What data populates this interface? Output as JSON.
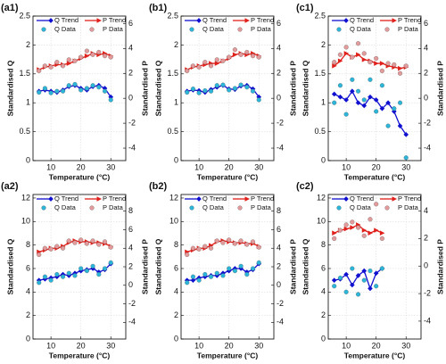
{
  "chart_data": [
    {
      "type": "line",
      "title": "(a1)",
      "x_label": "Temperature (°C)",
      "y_label": "Standardised Q",
      "y2_label": "Standardised P",
      "xlim": [
        4,
        35
      ],
      "xticks": [
        10,
        20,
        30
      ],
      "ylim": [
        0,
        2.5
      ],
      "yticks": [
        0,
        0.5,
        1,
        1.5,
        2,
        2.5
      ],
      "y2lim": [
        -5,
        6.6
      ],
      "y2ticks": [
        -4,
        -2,
        0,
        2,
        4,
        6
      ],
      "grid": true,
      "series": [
        {
          "name": "Q Trend",
          "kind": "line",
          "color": "#1010d0",
          "x": [
            6,
            8,
            10,
            12,
            14,
            16,
            18,
            20,
            22,
            24,
            26,
            28,
            30
          ],
          "values": [
            1.2,
            1.22,
            1.2,
            1.18,
            1.22,
            1.28,
            1.3,
            1.25,
            1.22,
            1.28,
            1.3,
            1.25,
            1.1
          ]
        },
        {
          "name": "P Trend",
          "kind": "line",
          "axis": "y2",
          "color": "#e0201b",
          "x": [
            6,
            8,
            10,
            12,
            14,
            16,
            18,
            20,
            22,
            24,
            26,
            28,
            30
          ],
          "values": [
            2.3,
            2.5,
            2.6,
            2.7,
            2.7,
            2.8,
            3.0,
            3.2,
            3.4,
            3.6,
            3.5,
            3.6,
            3.4
          ]
        },
        {
          "name": "Q Data",
          "kind": "scatter",
          "color": "#2bb5d8",
          "x": [
            6,
            8,
            10,
            12,
            14,
            16,
            18,
            20,
            22,
            24,
            26,
            28,
            30
          ],
          "values": [
            1.18,
            1.25,
            1.17,
            1.2,
            1.2,
            1.3,
            1.32,
            1.22,
            1.25,
            1.3,
            1.27,
            1.2,
            1.05
          ]
        },
        {
          "name": "P Data",
          "kind": "scatter",
          "axis": "y2",
          "color": "#e39a9a",
          "x": [
            6,
            8,
            10,
            12,
            14,
            16,
            18,
            20,
            22,
            24,
            26,
            28,
            30
          ],
          "values": [
            2.2,
            2.6,
            2.5,
            2.9,
            2.6,
            3.1,
            3.0,
            3.3,
            3.8,
            3.5,
            3.7,
            3.4,
            3.3
          ]
        }
      ]
    },
    {
      "type": "line",
      "title": "(b1)",
      "x_label": "Temperature (°C)",
      "y_label": "Standardised Q",
      "y2_label": "Standardised P",
      "xlim": [
        4,
        35
      ],
      "xticks": [
        10,
        20,
        30
      ],
      "ylim": [
        0,
        2.5
      ],
      "yticks": [
        0,
        0.5,
        1,
        1.5,
        2,
        2.5
      ],
      "y2lim": [
        -5,
        6.6
      ],
      "y2ticks": [
        -4,
        -2,
        0,
        2,
        4,
        6
      ],
      "grid": true,
      "series": [
        {
          "name": "Q Trend",
          "kind": "line",
          "color": "#1010d0",
          "x": [
            6,
            8,
            10,
            12,
            14,
            16,
            18,
            20,
            22,
            24,
            26,
            28,
            30
          ],
          "values": [
            1.2,
            1.22,
            1.21,
            1.18,
            1.23,
            1.27,
            1.3,
            1.24,
            1.23,
            1.29,
            1.3,
            1.24,
            1.1
          ]
        },
        {
          "name": "P Trend",
          "kind": "line",
          "axis": "y2",
          "color": "#e0201b",
          "x": [
            6,
            8,
            10,
            12,
            14,
            16,
            18,
            20,
            22,
            24,
            26,
            28,
            30
          ],
          "values": [
            2.3,
            2.5,
            2.6,
            2.7,
            2.8,
            2.8,
            3.0,
            3.2,
            3.5,
            3.6,
            3.5,
            3.6,
            3.4
          ]
        },
        {
          "name": "Q Data",
          "kind": "scatter",
          "color": "#2bb5d8",
          "x": [
            6,
            8,
            10,
            12,
            14,
            16,
            18,
            20,
            22,
            24,
            26,
            28,
            30
          ],
          "values": [
            1.18,
            1.24,
            1.17,
            1.21,
            1.2,
            1.3,
            1.31,
            1.22,
            1.25,
            1.31,
            1.27,
            1.2,
            1.05
          ]
        },
        {
          "name": "P Data",
          "kind": "scatter",
          "axis": "y2",
          "color": "#e39a9a",
          "x": [
            6,
            8,
            10,
            12,
            14,
            16,
            18,
            20,
            22,
            24,
            26,
            28,
            30
          ],
          "values": [
            2.2,
            2.6,
            2.5,
            2.9,
            2.6,
            3.1,
            3.0,
            3.3,
            3.9,
            3.5,
            3.7,
            3.4,
            3.3
          ]
        }
      ]
    },
    {
      "type": "line",
      "title": "(c1)",
      "x_label": "Temperature (°C)",
      "y_label": "Standardised Q",
      "y2_label": "Standardised P",
      "xlim": [
        4,
        35
      ],
      "xticks": [
        10,
        20,
        30
      ],
      "ylim": [
        0,
        2.5
      ],
      "yticks": [
        0,
        0.5,
        1,
        1.5,
        2,
        2.5
      ],
      "y2lim": [
        -5,
        6.6
      ],
      "y2ticks": [
        -4,
        -2,
        0,
        2,
        4,
        6
      ],
      "grid": true,
      "series": [
        {
          "name": "Q Trend",
          "kind": "line",
          "color": "#1010d0",
          "x": [
            6,
            8,
            10,
            12,
            14,
            16,
            18,
            20,
            22,
            24,
            26,
            28,
            30
          ],
          "values": [
            1.15,
            1.1,
            1.05,
            1.2,
            1.0,
            0.95,
            1.1,
            1.05,
            0.9,
            1.0,
            0.85,
            0.6,
            0.45
          ]
        },
        {
          "name": "P Trend",
          "kind": "line",
          "axis": "y2",
          "color": "#e0201b",
          "x": [
            6,
            8,
            10,
            12,
            14,
            16,
            18,
            20,
            22,
            24,
            26,
            28,
            30
          ],
          "values": [
            2.6,
            3.0,
            3.6,
            3.3,
            3.5,
            3.1,
            3.0,
            2.8,
            2.8,
            2.6,
            2.5,
            2.4,
            2.5
          ]
        },
        {
          "name": "Q Data",
          "kind": "scatter",
          "color": "#2bb5d8",
          "x": [
            6,
            8,
            10,
            12,
            14,
            16,
            18,
            20,
            22,
            24,
            26,
            28,
            30
          ],
          "values": [
            1.0,
            1.3,
            0.8,
            1.4,
            1.2,
            1.05,
            1.4,
            0.85,
            1.3,
            0.6,
            0.9,
            1.0,
            0.05
          ]
        },
        {
          "name": "P Data",
          "kind": "scatter",
          "axis": "y2",
          "color": "#e39a9a",
          "x": [
            6,
            8,
            10,
            12,
            14,
            16,
            18,
            20,
            22,
            24,
            26,
            28,
            30
          ],
          "values": [
            2.9,
            3.5,
            4.1,
            3.3,
            4.4,
            3.6,
            2.9,
            3.2,
            2.2,
            2.8,
            2.7,
            2.0,
            2.6
          ]
        }
      ]
    },
    {
      "type": "line",
      "title": "(a2)",
      "x_label": "Temperature (°C)",
      "y_label": "Standardised Q",
      "y2_label": "Standardised P",
      "xlim": [
        4,
        35
      ],
      "xticks": [
        10,
        20,
        30
      ],
      "ylim": [
        0,
        12.3
      ],
      "yticks": [
        0,
        2,
        4,
        6,
        8,
        10,
        12
      ],
      "y2lim": [
        -5.8,
        9.8
      ],
      "y2ticks": [
        -4,
        -2,
        0,
        2,
        4,
        6,
        8
      ],
      "grid": true,
      "series": [
        {
          "name": "Q Trend",
          "kind": "line",
          "color": "#1010d0",
          "x": [
            6,
            8,
            10,
            12,
            14,
            16,
            18,
            20,
            22,
            24,
            26,
            28,
            30
          ],
          "values": [
            5.0,
            5.1,
            5.2,
            5.3,
            5.5,
            5.4,
            5.6,
            5.8,
            5.9,
            6.0,
            5.7,
            5.9,
            6.4
          ]
        },
        {
          "name": "P Trend",
          "kind": "line",
          "axis": "y2",
          "color": "#e0201b",
          "x": [
            6,
            8,
            10,
            12,
            14,
            16,
            18,
            20,
            22,
            24,
            26,
            28,
            30
          ],
          "values": [
            3.6,
            3.8,
            4.0,
            4.0,
            4.2,
            4.6,
            4.8,
            4.7,
            4.7,
            4.6,
            4.6,
            4.5,
            4.2
          ]
        },
        {
          "name": "Q Data",
          "kind": "scatter",
          "color": "#2bb5d8",
          "x": [
            6,
            8,
            10,
            12,
            14,
            16,
            18,
            20,
            22,
            24,
            26,
            28,
            30
          ],
          "values": [
            4.8,
            5.3,
            5.0,
            5.5,
            5.3,
            5.6,
            5.4,
            6.0,
            5.8,
            6.2,
            5.5,
            6.0,
            6.5
          ]
        },
        {
          "name": "P Data",
          "kind": "scatter",
          "axis": "y2",
          "color": "#e39a9a",
          "x": [
            6,
            8,
            10,
            12,
            14,
            16,
            18,
            20,
            22,
            24,
            26,
            28,
            30
          ],
          "values": [
            3.3,
            4.0,
            3.9,
            4.2,
            4.0,
            4.8,
            4.6,
            4.9,
            4.5,
            4.8,
            4.4,
            4.7,
            4.1
          ]
        }
      ]
    },
    {
      "type": "line",
      "title": "(b2)",
      "x_label": "Temperature (°C)",
      "y_label": "Standardised Q",
      "y2_label": "Standardised P",
      "xlim": [
        4,
        35
      ],
      "xticks": [
        10,
        20,
        30
      ],
      "ylim": [
        0,
        12.3
      ],
      "yticks": [
        0,
        2,
        4,
        6,
        8,
        10,
        12
      ],
      "y2lim": [
        -5.8,
        9.8
      ],
      "y2ticks": [
        -4,
        -2,
        0,
        2,
        4,
        6,
        8
      ],
      "grid": true,
      "series": [
        {
          "name": "Q Trend",
          "kind": "line",
          "color": "#1010d0",
          "x": [
            6,
            8,
            10,
            12,
            14,
            16,
            18,
            20,
            22,
            24,
            26,
            28,
            30
          ],
          "values": [
            5.0,
            5.0,
            5.2,
            5.3,
            5.4,
            5.4,
            5.6,
            5.8,
            6.0,
            6.0,
            5.7,
            5.9,
            6.4
          ]
        },
        {
          "name": "P Trend",
          "kind": "line",
          "axis": "y2",
          "color": "#e0201b",
          "x": [
            6,
            8,
            10,
            12,
            14,
            16,
            18,
            20,
            22,
            24,
            26,
            28,
            30
          ],
          "values": [
            3.6,
            3.8,
            4.0,
            4.0,
            4.3,
            4.7,
            4.8,
            4.7,
            4.6,
            4.6,
            4.5,
            4.5,
            4.2
          ]
        },
        {
          "name": "Q Data",
          "kind": "scatter",
          "color": "#2bb5d8",
          "x": [
            6,
            8,
            10,
            12,
            14,
            16,
            18,
            20,
            22,
            24,
            26,
            28,
            30
          ],
          "values": [
            4.8,
            5.3,
            5.0,
            5.5,
            5.3,
            5.6,
            5.4,
            6.0,
            5.8,
            6.2,
            5.5,
            6.0,
            6.5
          ]
        },
        {
          "name": "P Data",
          "kind": "scatter",
          "axis": "y2",
          "color": "#e39a9a",
          "x": [
            6,
            8,
            10,
            12,
            14,
            16,
            18,
            20,
            22,
            24,
            26,
            28,
            30
          ],
          "values": [
            3.3,
            4.0,
            3.9,
            4.2,
            4.0,
            4.8,
            4.6,
            4.9,
            4.5,
            4.8,
            4.4,
            4.7,
            4.1
          ]
        }
      ]
    },
    {
      "type": "line",
      "title": "(c2)",
      "x_label": "Temperature (°C)",
      "y_label": "Standardised Q",
      "y2_label": "Standardised P",
      "xlim": [
        4,
        35
      ],
      "xticks": [
        10,
        20,
        30
      ],
      "ylim": [
        0,
        12.3
      ],
      "yticks": [
        0,
        2,
        4,
        6,
        8,
        10,
        12
      ],
      "y2lim": [
        -5.3,
        5.2
      ],
      "y2ticks": [
        -4,
        -2,
        0,
        2,
        4
      ],
      "grid": true,
      "series": [
        {
          "name": "Q Trend",
          "kind": "line",
          "color": "#1010d0",
          "x": [
            6,
            8,
            10,
            12,
            14,
            16,
            18,
            20,
            22
          ],
          "values": [
            5.0,
            5.1,
            5.5,
            4.6,
            5.4,
            5.8,
            4.3,
            5.6,
            6.0
          ]
        },
        {
          "name": "P Trend",
          "kind": "line",
          "axis": "y2",
          "color": "#e0201b",
          "x": [
            6,
            8,
            10,
            12,
            14,
            16,
            18,
            20,
            22
          ],
          "values": [
            2.4,
            2.6,
            2.7,
            2.8,
            3.0,
            2.6,
            2.4,
            2.6,
            2.4
          ]
        },
        {
          "name": "Q Data",
          "kind": "scatter",
          "color": "#2bb5d8",
          "x": [
            6,
            8,
            10,
            12,
            14,
            16,
            18,
            20,
            22
          ],
          "values": [
            4.5,
            5.2,
            4.0,
            6.0,
            3.8,
            5.0,
            5.8,
            4.5,
            6.0
          ]
        },
        {
          "name": "P Data",
          "kind": "scatter",
          "axis": "y2",
          "color": "#e39a9a",
          "x": [
            6,
            8,
            10,
            12,
            14,
            16,
            18,
            20,
            22
          ],
          "values": [
            2.0,
            2.6,
            3.0,
            3.2,
            2.8,
            2.2,
            3.4,
            4.5,
            2.0
          ]
        }
      ]
    }
  ]
}
